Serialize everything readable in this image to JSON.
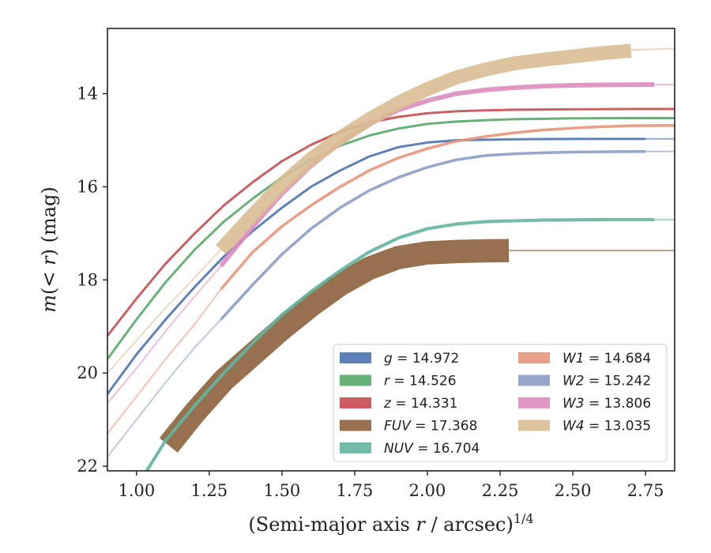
{
  "chart_data": {
    "type": "line",
    "xlabel": "(Semi-major axis r / arcsec)",
    "xlabel_parts": {
      "pre": "(Semi-major axis ",
      "var": "r",
      "post": " / arcsec)",
      "exp": "1/4"
    },
    "ylabel_parts": {
      "m": "m",
      "open": "(",
      "lt": "< ",
      "r": "r",
      "close": ")",
      "unit": " (mag)"
    },
    "xlim": [
      0.9,
      2.85
    ],
    "ylim": [
      22.1,
      12.6
    ],
    "y_inverted": true,
    "x_ticks": [
      "1.00",
      "1.25",
      "1.50",
      "1.75",
      "2.00",
      "2.25",
      "2.50",
      "2.75"
    ],
    "y_ticks": [
      "14",
      "16",
      "18",
      "20",
      "22"
    ],
    "grid": false,
    "legend_placement": "lower-right",
    "series": [
      {
        "name": "g",
        "value": "14.972",
        "color": "#4C72B0",
        "width_mag": 0.05,
        "x": [
          0.9,
          1.0,
          1.1,
          1.2,
          1.3,
          1.4,
          1.5,
          1.6,
          1.7,
          1.8,
          1.9,
          2.0,
          2.1,
          2.2,
          2.3,
          2.4,
          2.5,
          2.6,
          2.75
        ],
        "y": [
          20.45,
          19.6,
          18.85,
          18.15,
          17.5,
          16.95,
          16.45,
          16.0,
          15.65,
          15.35,
          15.15,
          15.05,
          15.0,
          14.99,
          14.98,
          14.975,
          14.973,
          14.972,
          14.972
        ],
        "ext_x": [
          2.75,
          2.85
        ],
        "ext_y": [
          14.972,
          14.972
        ]
      },
      {
        "name": "r",
        "value": "14.526",
        "color": "#55A868",
        "width_mag": 0.05,
        "x": [
          0.9,
          1.0,
          1.1,
          1.2,
          1.3,
          1.4,
          1.5,
          1.6,
          1.7,
          1.8,
          1.9,
          2.0,
          2.1,
          2.2,
          2.3,
          2.4,
          2.5,
          2.6,
          2.7,
          2.85
        ],
        "y": [
          19.7,
          18.85,
          18.05,
          17.35,
          16.75,
          16.25,
          15.8,
          15.42,
          15.12,
          14.9,
          14.75,
          14.65,
          14.6,
          14.57,
          14.55,
          14.54,
          14.53,
          14.527,
          14.526,
          14.526
        ]
      },
      {
        "name": "z",
        "value": "14.331",
        "color": "#C44E52",
        "width_mag": 0.05,
        "x": [
          0.9,
          1.0,
          1.1,
          1.2,
          1.3,
          1.4,
          1.5,
          1.6,
          1.7,
          1.8,
          1.9,
          2.0,
          2.1,
          2.2,
          2.3,
          2.4,
          2.5,
          2.6,
          2.7,
          2.85
        ],
        "y": [
          19.2,
          18.4,
          17.65,
          17.0,
          16.4,
          15.9,
          15.45,
          15.1,
          14.82,
          14.62,
          14.5,
          14.42,
          14.38,
          14.36,
          14.345,
          14.34,
          14.335,
          14.333,
          14.331,
          14.331
        ]
      },
      {
        "name": "FUV",
        "value": "17.368",
        "color": "#8C613C",
        "width_mag": 0.5,
        "x": [
          1.11,
          1.2,
          1.3,
          1.4,
          1.5,
          1.6,
          1.7,
          1.8,
          1.9,
          2.0,
          2.1,
          2.2,
          2.28
        ],
        "y": [
          21.55,
          20.85,
          20.15,
          19.6,
          19.05,
          18.55,
          18.1,
          17.75,
          17.52,
          17.42,
          17.39,
          17.375,
          17.368
        ],
        "ext_x": [
          2.28,
          2.85
        ],
        "ext_y": [
          17.368,
          17.368
        ]
      },
      {
        "name": "NUV",
        "value": "16.704",
        "color": "#64B5A0",
        "width_mag": 0.07,
        "x": [
          1.03,
          1.1,
          1.2,
          1.3,
          1.4,
          1.5,
          1.6,
          1.7,
          1.8,
          1.9,
          2.0,
          2.1,
          2.2,
          2.3,
          2.4,
          2.5,
          2.6,
          2.78
        ],
        "y": [
          22.15,
          21.45,
          20.7,
          20.0,
          19.35,
          18.75,
          18.25,
          17.8,
          17.4,
          17.1,
          16.9,
          16.8,
          16.75,
          16.73,
          16.715,
          16.71,
          16.706,
          16.704
        ],
        "ext_x": [
          2.78,
          2.85
        ],
        "ext_y": [
          16.704,
          16.704
        ]
      },
      {
        "name": "W1",
        "value": "14.684",
        "color": "#E8967A",
        "width_mag": 0.06,
        "x": [
          1.29,
          1.4,
          1.5,
          1.6,
          1.7,
          1.8,
          1.9,
          2.0,
          2.1,
          2.2,
          2.3,
          2.4,
          2.5,
          2.6,
          2.7,
          2.85
        ],
        "y": [
          18.2,
          17.4,
          16.85,
          16.4,
          16.0,
          15.65,
          15.38,
          15.18,
          15.02,
          14.92,
          14.84,
          14.78,
          14.74,
          14.71,
          14.69,
          14.684
        ],
        "pre_x": [
          0.9,
          1.0,
          1.1,
          1.2,
          1.29
        ],
        "pre_y": [
          21.3,
          20.5,
          19.7,
          18.95,
          18.2
        ]
      },
      {
        "name": "W2",
        "value": "15.242",
        "color": "#8B9DC3",
        "width_mag": 0.06,
        "x": [
          1.29,
          1.4,
          1.5,
          1.6,
          1.7,
          1.8,
          1.9,
          2.0,
          2.1,
          2.2,
          2.3,
          2.4,
          2.5,
          2.6,
          2.75
        ],
        "y": [
          18.85,
          18.1,
          17.45,
          16.9,
          16.45,
          16.08,
          15.8,
          15.58,
          15.42,
          15.33,
          15.29,
          15.27,
          15.255,
          15.248,
          15.242
        ],
        "pre_x": [
          0.9,
          1.0,
          1.1,
          1.2,
          1.29
        ],
        "pre_y": [
          21.8,
          21.0,
          20.2,
          19.45,
          18.85
        ],
        "ext_x": [
          2.75,
          2.85
        ],
        "ext_y": [
          15.242,
          15.242
        ]
      },
      {
        "name": "W3",
        "value": "13.806",
        "color": "#DC8CC0",
        "width_mag": 0.1,
        "x": [
          1.29,
          1.4,
          1.5,
          1.6,
          1.7,
          1.8,
          1.9,
          2.0,
          2.1,
          2.2,
          2.3,
          2.4,
          2.5,
          2.6,
          2.7,
          2.78
        ],
        "y": [
          17.7,
          16.85,
          16.15,
          15.55,
          15.05,
          14.65,
          14.35,
          14.15,
          14.0,
          13.92,
          13.87,
          13.84,
          13.82,
          13.812,
          13.808,
          13.806
        ],
        "pre_x": [
          0.9,
          1.0,
          1.1,
          1.2,
          1.29
        ],
        "pre_y": [
          20.65,
          19.9,
          19.1,
          18.35,
          17.7
        ],
        "ext_x": [
          2.78,
          2.85
        ],
        "ext_y": [
          13.806,
          13.806
        ]
      },
      {
        "name": "W4",
        "value": "13.035",
        "color": "#D9BC94",
        "width_mag": 0.3,
        "x": [
          1.29,
          1.4,
          1.5,
          1.6,
          1.7,
          1.8,
          1.9,
          2.0,
          2.1,
          2.2,
          2.3,
          2.4,
          2.5,
          2.6,
          2.7
        ],
        "y": [
          17.35,
          16.6,
          15.95,
          15.4,
          14.95,
          14.55,
          14.2,
          13.9,
          13.65,
          13.48,
          13.35,
          13.27,
          13.2,
          13.13,
          13.08
        ],
        "pre_x": [
          0.9,
          1.0,
          1.1,
          1.2,
          1.29
        ],
        "pre_y": [
          20.0,
          19.3,
          18.6,
          17.95,
          17.35
        ],
        "ext_x": [
          2.7,
          2.85
        ],
        "ext_y": [
          13.06,
          13.035
        ]
      }
    ]
  }
}
